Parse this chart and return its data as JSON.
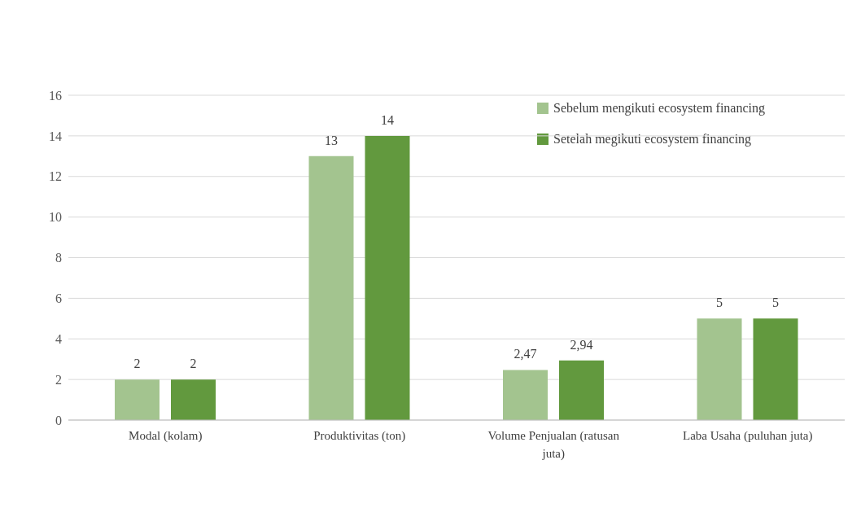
{
  "chart_data": {
    "type": "bar",
    "categories": [
      "Modal (kolam)",
      "Produktivitas (ton)",
      "Volume Penjualan (ratusan juta)",
      "Laba Usaha (puluhan juta)"
    ],
    "series": [
      {
        "name": "Sebelum mengikuti ecosystem financing",
        "color": "#a3c48f",
        "values": [
          2,
          13,
          2.47,
          5
        ],
        "value_labels": [
          "2",
          "13",
          "2,47",
          "5"
        ]
      },
      {
        "name": "Setelah megikuti ecosystem financing",
        "color": "#62993e",
        "values": [
          2,
          14,
          2.94,
          5
        ],
        "value_labels": [
          "2",
          "14",
          "2,94",
          "5"
        ]
      }
    ],
    "ylim": [
      0,
      16
    ],
    "yticks": [
      0,
      2,
      4,
      6,
      8,
      10,
      12,
      14,
      16
    ],
    "grid": "y",
    "legend": "top right"
  }
}
